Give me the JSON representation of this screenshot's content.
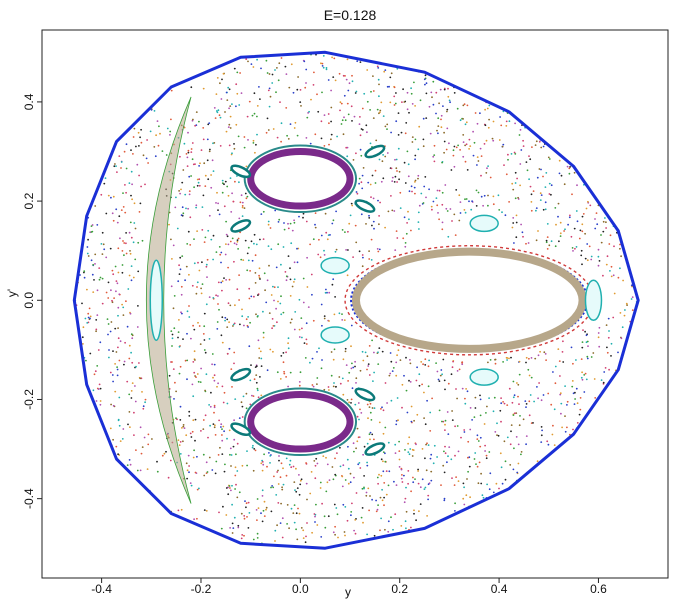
{
  "chart_data": {
    "type": "scatter",
    "title": "E=0.128",
    "xlabel": "y",
    "ylabel": "y'",
    "xlim": [
      -0.52,
      0.74
    ],
    "ylim": [
      -0.56,
      0.545
    ],
    "grid": false,
    "x_ticks": [
      -0.4,
      -0.2,
      0.0,
      0.2,
      0.4,
      0.6
    ],
    "y_ticks": [
      -0.4,
      -0.2,
      0.0,
      0.2,
      0.4
    ],
    "x_tick_labels": [
      "-0.4",
      "-0.2",
      "0.0",
      "0.2",
      "0.4",
      "0.6"
    ],
    "y_tick_labels": [
      "-0.4",
      "-0.2",
      "0.0",
      "0.2",
      "0.4"
    ],
    "energy_boundary": {
      "color": "#1a2fd6",
      "points": [
        [
          0.68,
          0.0
        ],
        [
          0.64,
          0.14
        ],
        [
          0.55,
          0.27
        ],
        [
          0.42,
          0.38
        ],
        [
          0.25,
          0.46
        ],
        [
          0.05,
          0.5
        ],
        [
          -0.12,
          0.49
        ],
        [
          -0.26,
          0.43
        ],
        [
          -0.37,
          0.32
        ],
        [
          -0.43,
          0.17
        ],
        [
          -0.455,
          0.0
        ],
        [
          -0.43,
          -0.17
        ],
        [
          -0.37,
          -0.32
        ],
        [
          -0.26,
          -0.43
        ],
        [
          -0.12,
          -0.49
        ],
        [
          0.05,
          -0.5
        ],
        [
          0.25,
          -0.46
        ],
        [
          0.42,
          -0.38
        ],
        [
          0.55,
          -0.27
        ],
        [
          0.64,
          -0.14
        ],
        [
          0.68,
          0.0
        ]
      ]
    },
    "chaotic_sea_colors": [
      "#e05a3a",
      "#3a9e3a",
      "#2a40c8",
      "#b050b0",
      "#20b0b0",
      "#8a6a2a",
      "#d04070",
      "#222222",
      "#e09a30"
    ],
    "island_chains": [
      {
        "name": "",
        "color": "#7a2a8a",
        "center": [
          0.0,
          0.245
        ],
        "rx": 0.1,
        "ry": 0.055
      },
      {
        "name": "",
        "color": "#7a2a8a",
        "center": [
          0.0,
          -0.245
        ],
        "rx": 0.1,
        "ry": 0.055
      },
      {
        "name": "",
        "color": "#b7a78a",
        "center": [
          0.34,
          0.0
        ],
        "rx": 0.22,
        "ry": 0.09
      },
      {
        "name": "",
        "color": "#1a2fd6",
        "center": [
          0.34,
          0.0
        ],
        "rx": 0.25,
        "ry": 0.11
      }
    ],
    "secondary_islands": [
      {
        "center": [
          -0.12,
          0.26
        ],
        "color": "#0c7a7a"
      },
      {
        "center": [
          0.15,
          0.3
        ],
        "color": "#0c7a7a"
      },
      {
        "center": [
          0.13,
          0.19
        ],
        "color": "#0c7a7a"
      },
      {
        "center": [
          -0.12,
          0.15
        ],
        "color": "#0c7a7a"
      },
      {
        "center": [
          -0.12,
          -0.26
        ],
        "color": "#0c7a7a"
      },
      {
        "center": [
          0.15,
          -0.3
        ],
        "color": "#0c7a7a"
      },
      {
        "center": [
          0.13,
          -0.19
        ],
        "color": "#0c7a7a"
      },
      {
        "center": [
          -0.12,
          -0.15
        ],
        "color": "#0c7a7a"
      },
      {
        "center": [
          -0.29,
          0.0
        ],
        "color": "#20b0b0"
      },
      {
        "center": [
          0.59,
          0.0
        ],
        "color": "#20b0b0"
      },
      {
        "center": [
          0.37,
          0.155
        ],
        "color": "#20b0b0"
      },
      {
        "center": [
          0.37,
          -0.155
        ],
        "color": "#20b0b0"
      },
      {
        "center": [
          0.07,
          0.07
        ],
        "color": "#20b0b0"
      },
      {
        "center": [
          0.07,
          -0.07
        ],
        "color": "#20b0b0"
      }
    ],
    "crescent_band": {
      "color": "#b7a78a",
      "x_range": [
        -0.34,
        -0.2
      ],
      "y_range": [
        -0.42,
        0.42
      ]
    }
  }
}
